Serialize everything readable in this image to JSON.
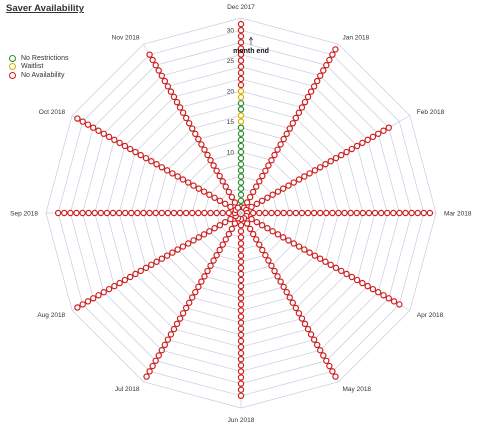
{
  "chart_data": {
    "type": "radar",
    "title": "Saver Availability",
    "categories": [
      "Dec 2017",
      "Jan 2018",
      "Feb 2018",
      "Mar 2018",
      "Apr 2018",
      "May 2018",
      "Jun 2018",
      "Jul 2018",
      "Aug 2018",
      "Sep 2018",
      "Oct 2018",
      "Nov 2018"
    ],
    "radial_ticks": [
      10,
      15,
      20,
      25,
      30
    ],
    "rlim": [
      0,
      32
    ],
    "grid": true,
    "legend": {
      "placement": "top-left",
      "entries": [
        {
          "name": "No Restrictions",
          "color": "#2e8b2e"
        },
        {
          "name": "Waitlist",
          "color": "#d4b000"
        },
        {
          "name": "No Availability",
          "color": "#cc1f1f"
        }
      ]
    },
    "annotation": {
      "text": "month end",
      "category": "Dec 2017",
      "value": 30
    },
    "series_status_by_day": {
      "Dec 2017": [
        "No Restrictions",
        "No Restrictions",
        "No Restrictions",
        "No Restrictions",
        "No Restrictions",
        "No Restrictions",
        "No Restrictions",
        "No Restrictions",
        "No Restrictions",
        "No Restrictions",
        "No Restrictions",
        "No Restrictions",
        "No Restrictions",
        "No Restrictions",
        "Waitlist",
        "Waitlist",
        "No Restrictions",
        "No Restrictions",
        "Waitlist",
        "Waitlist",
        "No Availability",
        "No Availability",
        "No Availability",
        "No Availability",
        "No Availability",
        "No Availability",
        "No Availability",
        "No Availability",
        "No Availability",
        "No Availability",
        "No Availability"
      ],
      "Jan 2018": {
        "fill": "No Availability",
        "days": 31
      },
      "Feb 2018": {
        "fill": "No Availability",
        "days": 28
      },
      "Mar 2018": {
        "fill": "No Availability",
        "days": 31
      },
      "Apr 2018": {
        "fill": "No Availability",
        "days": 30
      },
      "May 2018": {
        "fill": "No Availability",
        "days": 31
      },
      "Jun 2018": {
        "fill": "No Availability",
        "days": 30
      },
      "Jul 2018": {
        "fill": "No Availability",
        "days": 31
      },
      "Aug 2018": {
        "fill": "No Availability",
        "days": 31
      },
      "Sep 2018": {
        "fill": "No Availability",
        "days": 30
      },
      "Oct 2018": {
        "fill": "No Availability",
        "days": 31
      },
      "Nov 2018": {
        "fill": "No Availability",
        "days": 30
      }
    },
    "colors": {
      "grid": "#c8cce0",
      "text": "#333333"
    }
  }
}
